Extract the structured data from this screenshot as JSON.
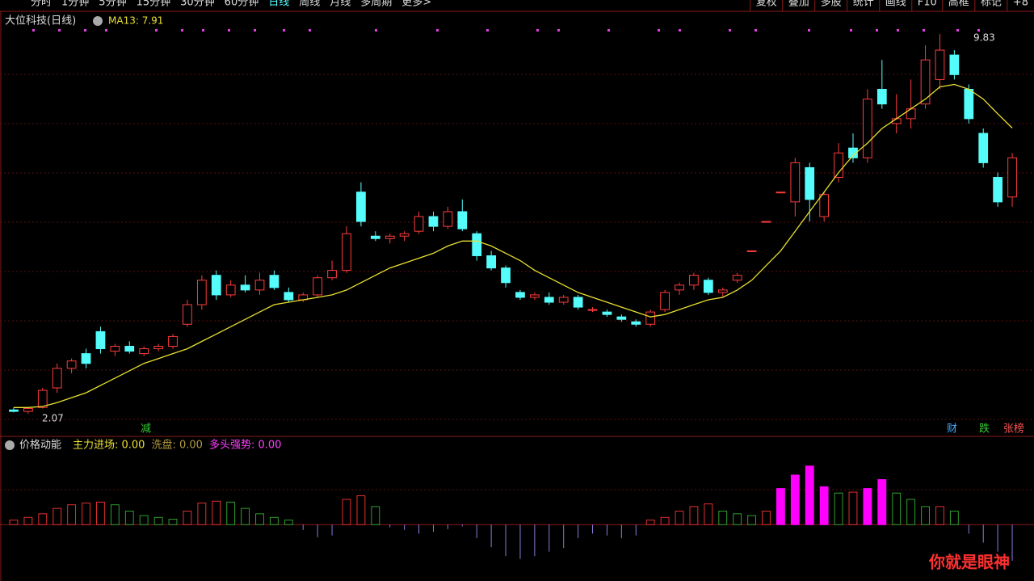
{
  "toolbar": {
    "left": [
      "分时",
      "1分钟",
      "5分钟",
      "15分钟",
      "30分钟",
      "60分钟",
      "日线",
      "周线",
      "月线",
      "多周期",
      "更多>"
    ],
    "right": [
      "复权",
      "叠加",
      "多股",
      "统计",
      "画线",
      "F10",
      "高框",
      "标记",
      "+8"
    ]
  },
  "chart_data": [
    {
      "type": "candlestick",
      "title": "大位科技(日线)",
      "ma_label": "MA13: 7.91",
      "ylim": [
        1.94,
        9.93
      ],
      "up_color": "#ff3c3c",
      "down_color": "#54fcfc",
      "ma_color": "#e8e030",
      "grid": true,
      "candles": [
        [
          2.15,
          2.2,
          2.1,
          2.12
        ],
        [
          2.12,
          2.2,
          2.07,
          2.18
        ],
        [
          2.2,
          2.6,
          2.18,
          2.55
        ],
        [
          2.6,
          3.1,
          2.5,
          3.0
        ],
        [
          3.0,
          3.2,
          2.9,
          3.15
        ],
        [
          3.3,
          3.4,
          3.0,
          3.1
        ],
        [
          3.75,
          3.85,
          3.3,
          3.4
        ],
        [
          3.35,
          3.5,
          3.25,
          3.45
        ],
        [
          3.45,
          3.55,
          3.3,
          3.35
        ],
        [
          3.3,
          3.45,
          3.25,
          3.4
        ],
        [
          3.4,
          3.5,
          3.35,
          3.45
        ],
        [
          3.45,
          3.7,
          3.4,
          3.65
        ],
        [
          3.9,
          4.4,
          3.85,
          4.3
        ],
        [
          4.3,
          4.9,
          4.2,
          4.8
        ],
        [
          4.9,
          5.0,
          4.4,
          4.5
        ],
        [
          4.5,
          4.8,
          4.45,
          4.7
        ],
        [
          4.7,
          4.9,
          4.55,
          4.6
        ],
        [
          4.6,
          4.95,
          4.5,
          4.8
        ],
        [
          4.9,
          5.0,
          4.6,
          4.65
        ],
        [
          4.55,
          4.65,
          4.35,
          4.4
        ],
        [
          4.4,
          4.55,
          4.35,
          4.5
        ],
        [
          4.5,
          4.9,
          4.45,
          4.85
        ],
        [
          4.85,
          5.2,
          4.8,
          5.0
        ],
        [
          5.0,
          5.9,
          4.95,
          5.75
        ],
        [
          6.6,
          6.8,
          5.9,
          6.0
        ],
        [
          5.7,
          5.8,
          5.6,
          5.65
        ],
        [
          5.65,
          5.75,
          5.55,
          5.7
        ],
        [
          5.7,
          5.8,
          5.6,
          5.75
        ],
        [
          5.8,
          6.2,
          5.75,
          6.1
        ],
        [
          6.1,
          6.2,
          5.8,
          5.9
        ],
        [
          5.9,
          6.3,
          5.85,
          6.2
        ],
        [
          6.2,
          6.45,
          5.8,
          5.85
        ],
        [
          5.75,
          5.8,
          5.2,
          5.3
        ],
        [
          5.3,
          5.4,
          5.0,
          5.05
        ],
        [
          5.05,
          5.1,
          4.65,
          4.75
        ],
        [
          4.55,
          4.6,
          4.4,
          4.45
        ],
        [
          4.45,
          4.55,
          4.4,
          4.5
        ],
        [
          4.45,
          4.55,
          4.3,
          4.35
        ],
        [
          4.35,
          4.5,
          4.3,
          4.45
        ],
        [
          4.45,
          4.5,
          4.2,
          4.25
        ],
        [
          4.2,
          4.25,
          4.15,
          4.2
        ],
        [
          4.15,
          4.2,
          4.05,
          4.1
        ],
        [
          4.05,
          4.1,
          3.95,
          4.0
        ],
        [
          3.95,
          4.0,
          3.85,
          3.9
        ],
        [
          3.9,
          4.2,
          3.85,
          4.15
        ],
        [
          4.2,
          4.6,
          4.15,
          4.55
        ],
        [
          4.6,
          4.75,
          4.5,
          4.7
        ],
        [
          4.7,
          4.95,
          4.6,
          4.9
        ],
        [
          4.8,
          4.85,
          4.5,
          4.55
        ],
        [
          4.55,
          4.65,
          4.45,
          4.6
        ],
        [
          4.8,
          4.95,
          4.75,
          4.9
        ],
        [
          5.4,
          5.4,
          5.4,
          5.4
        ],
        [
          6.0,
          6.0,
          6.0,
          6.0
        ],
        [
          6.6,
          6.6,
          6.6,
          6.6
        ],
        [
          6.4,
          7.3,
          6.1,
          7.2
        ],
        [
          7.1,
          7.2,
          6.0,
          6.45
        ],
        [
          6.1,
          6.6,
          6.0,
          6.55
        ],
        [
          6.9,
          7.6,
          6.8,
          7.4
        ],
        [
          7.5,
          7.8,
          7.2,
          7.3
        ],
        [
          7.3,
          8.7,
          7.2,
          8.5
        ],
        [
          8.7,
          9.3,
          8.3,
          8.4
        ],
        [
          8.0,
          8.6,
          7.8,
          8.1
        ],
        [
          8.1,
          8.9,
          7.9,
          8.3
        ],
        [
          8.4,
          9.6,
          8.3,
          9.3
        ],
        [
          8.9,
          9.83,
          8.7,
          9.5
        ],
        [
          9.4,
          9.5,
          8.9,
          9.0
        ],
        [
          8.7,
          8.8,
          8.0,
          8.1
        ],
        [
          7.8,
          7.9,
          7.1,
          7.2
        ],
        [
          6.9,
          7.0,
          6.3,
          6.4
        ],
        [
          6.5,
          7.4,
          6.3,
          7.3
        ]
      ],
      "ma13": [
        2.2,
        2.2,
        2.22,
        2.3,
        2.4,
        2.5,
        2.65,
        2.8,
        2.95,
        3.1,
        3.2,
        3.3,
        3.4,
        3.55,
        3.7,
        3.85,
        4.0,
        4.15,
        4.3,
        4.35,
        4.4,
        4.45,
        4.5,
        4.6,
        4.75,
        4.9,
        5.05,
        5.15,
        5.25,
        5.35,
        5.5,
        5.6,
        5.6,
        5.5,
        5.35,
        5.2,
        5.0,
        4.85,
        4.7,
        4.55,
        4.45,
        4.35,
        4.25,
        4.15,
        4.05,
        4.1,
        4.2,
        4.3,
        4.4,
        4.45,
        4.6,
        4.8,
        5.1,
        5.4,
        5.8,
        6.2,
        6.6,
        7.0,
        7.35,
        7.6,
        7.9,
        8.1,
        8.3,
        8.5,
        8.75,
        8.8,
        8.7,
        8.5,
        8.2,
        7.91
      ],
      "annotations": {
        "high": "9.83",
        "low": "2.07"
      }
    },
    {
      "type": "bar",
      "title": "价格动能",
      "legend": [
        {
          "text": "主力进场: 0.00",
          "color": "#e8e030"
        },
        {
          "text": "洗盘: 0.00",
          "color": "#b09a40"
        },
        {
          "text": "多头强势: 0.00",
          "color": "#ff40ff"
        }
      ],
      "ylim": [
        -5,
        8
      ],
      "colors": {
        "up": "#e0302f",
        "down": "#2f9e2f",
        "strong": "#ff00ff",
        "negative": "#8a7bd8"
      },
      "strong_level": 4,
      "values": [
        0.5,
        0.8,
        1.2,
        1.8,
        2.2,
        2.4,
        2.5,
        2.2,
        1.5,
        1.0,
        0.8,
        0.6,
        1.5,
        2.4,
        2.6,
        2.5,
        1.8,
        1.2,
        0.8,
        0.5,
        -0.6,
        -1.4,
        -1.2,
        2.8,
        3.2,
        2.0,
        -0.3,
        -0.6,
        -1.0,
        -0.8,
        -0.5,
        -0.2,
        -1.5,
        -2.5,
        -3.5,
        -3.8,
        -3.5,
        -3.0,
        -2.6,
        -1.5,
        -1.0,
        -1.2,
        -1.5,
        -1.2,
        0.5,
        0.8,
        1.5,
        2.0,
        2.3,
        1.5,
        1.2,
        1.0,
        1.5,
        4.0,
        5.5,
        6.5,
        4.2,
        3.5,
        3.6,
        4.0,
        5.0,
        3.5,
        2.8,
        2.0,
        2.0,
        1.5,
        -1.0,
        -2.0,
        -3.0,
        -4.0
      ]
    }
  ],
  "markers": [
    "减",
    "财",
    "跌",
    "张榜"
  ],
  "watermark": "你就是眼神"
}
